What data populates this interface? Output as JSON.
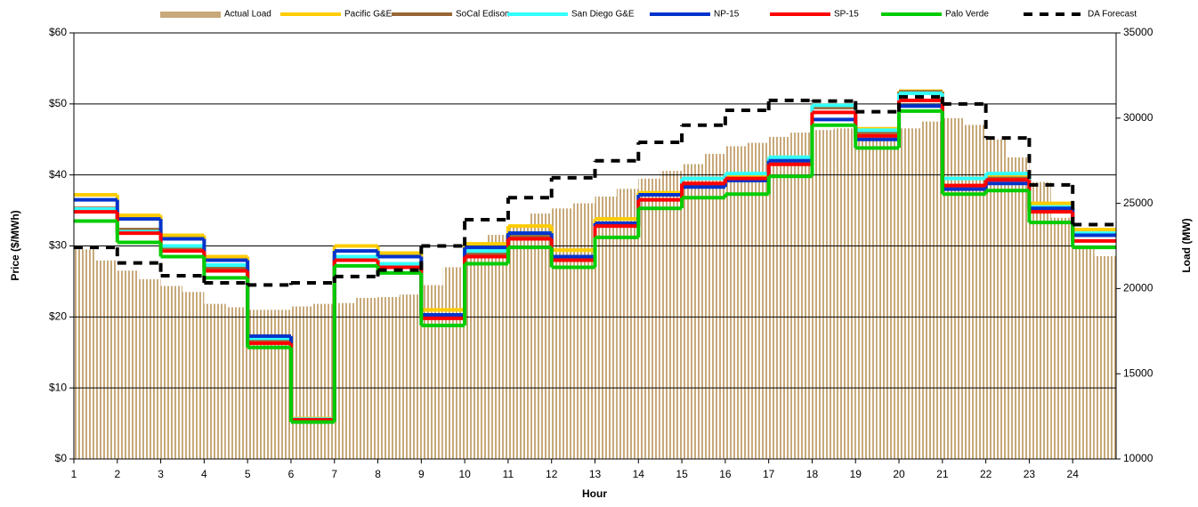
{
  "chart_data": {
    "type": "line",
    "x": [
      1,
      2,
      3,
      4,
      5,
      6,
      7,
      8,
      9,
      10,
      11,
      12,
      13,
      14,
      15,
      16,
      17,
      18,
      19,
      20,
      21,
      22,
      23,
      24
    ],
    "xlabel": "Hour",
    "ylabel": "Price ($/MWh)",
    "y2label": "Load (MW)",
    "xlim": [
      1,
      25
    ],
    "xticks": [
      1,
      2,
      3,
      4,
      5,
      6,
      7,
      8,
      9,
      10,
      11,
      12,
      13,
      14,
      15,
      16,
      17,
      18,
      19,
      20,
      21,
      22,
      23,
      24
    ],
    "ylim": [
      0,
      60
    ],
    "yticks": [
      {
        "value": 0,
        "label": "$0"
      },
      {
        "value": 10,
        "label": "$10"
      },
      {
        "value": 20,
        "label": "$20"
      },
      {
        "value": 30,
        "label": "$30"
      },
      {
        "value": 40,
        "label": "$40"
      },
      {
        "value": 50,
        "label": "$50"
      },
      {
        "value": 60,
        "label": "$60"
      }
    ],
    "y2lim": [
      10000,
      35000
    ],
    "y2ticks": [
      10000,
      15000,
      20000,
      25000,
      30000,
      35000
    ],
    "grid": true,
    "legend": "top",
    "series": [
      {
        "name": "Actual Load",
        "type": "bar",
        "axis": "y2",
        "color": "#c8a97a",
        "x": [
          1,
          1.5,
          2,
          2.5,
          3,
          3.5,
          4,
          4.5,
          5,
          5.5,
          6,
          6.5,
          7,
          7.5,
          8,
          8.5,
          9,
          9.5,
          10,
          10.5,
          11,
          11.5,
          12,
          12.5,
          13,
          13.5,
          14,
          14.5,
          15,
          15.5,
          16,
          16.5,
          17,
          17.5,
          18,
          18.5,
          19,
          19.5,
          20,
          20.5,
          21,
          21.5,
          22,
          22.5,
          23,
          23.5,
          24,
          24.5
        ],
        "values": [
          22300,
          21650,
          21050,
          20550,
          20150,
          19800,
          19100,
          18900,
          18750,
          18750,
          18950,
          19100,
          19150,
          19450,
          19500,
          19650,
          20200,
          21250,
          22300,
          23150,
          23750,
          24400,
          24700,
          25000,
          25400,
          25850,
          26450,
          26900,
          27300,
          27900,
          28350,
          28550,
          28900,
          29150,
          29300,
          29400,
          29150,
          28950,
          29400,
          29800,
          30000,
          29600,
          28750,
          27700,
          26250,
          24150,
          22500,
          21900
        ]
      },
      {
        "name": "Pacific G&E",
        "color": "#ffcc00",
        "values": [
          37.2,
          34.3,
          31.5,
          28.5,
          17.3,
          5.7,
          30,
          29,
          21,
          30.3,
          32.8,
          29.4,
          33.8,
          37.5,
          39.5,
          40,
          42.5,
          49.8,
          46.5,
          51.8,
          39.5,
          40,
          36,
          32.3
        ]
      },
      {
        "name": "SoCal Edison",
        "color": "#996633",
        "values": [
          35.3,
          32.3,
          29.8,
          27,
          16.8,
          5.6,
          28.5,
          27.5,
          20,
          29,
          31.5,
          28.5,
          32.8,
          36.5,
          38.5,
          39.5,
          42,
          49.5,
          46,
          51.7,
          38.5,
          39.5,
          35.2,
          31.5
        ]
      },
      {
        "name": "San Diego G&E",
        "color": "#33ffff",
        "values": [
          35.2,
          32,
          30,
          27.3,
          17,
          5.6,
          28.5,
          27.5,
          20.3,
          29.3,
          31.8,
          28.5,
          33.2,
          37.2,
          39.5,
          40.2,
          42.5,
          49.8,
          46.3,
          51.5,
          39.5,
          40.2,
          35.5,
          31.8
        ]
      },
      {
        "name": "NP-15",
        "color": "#0033cc",
        "values": [
          36.5,
          33.8,
          31,
          28,
          17.3,
          5.5,
          29.3,
          28.5,
          20.3,
          29.8,
          31.8,
          28.5,
          33.2,
          37.2,
          38.3,
          39.2,
          42,
          47.8,
          45,
          49.7,
          38,
          38.8,
          35.3,
          31.5
        ]
      },
      {
        "name": "SP-15",
        "color": "#ff0000",
        "values": [
          34.8,
          31.8,
          29.3,
          26.5,
          16.3,
          5.5,
          28,
          27,
          19.8,
          28.5,
          31,
          28,
          32.8,
          36.5,
          38.8,
          39.5,
          41.5,
          48.8,
          45.5,
          50.5,
          38.5,
          39.3,
          34.8,
          30.7
        ]
      },
      {
        "name": "Palo Verde",
        "color": "#00cc00",
        "values": [
          33.5,
          30.5,
          28.5,
          25.5,
          15.7,
          5.2,
          27.2,
          26.2,
          18.8,
          27.5,
          29.8,
          27,
          31.2,
          35.3,
          36.8,
          37.3,
          39.8,
          47,
          43.8,
          49,
          37.3,
          37.8,
          33.3,
          29.8
        ]
      },
      {
        "name": "DA Forecast",
        "color": "#000000",
        "dashed": true,
        "values": [
          29.8,
          27.6,
          25.8,
          24.8,
          24.5,
          24.8,
          25.7,
          26.6,
          30,
          33.7,
          36.8,
          39.6,
          42,
          44.6,
          47,
          49.1,
          50.5,
          50.4,
          48.9,
          51,
          50,
          45.2,
          38.6,
          33
        ]
      }
    ]
  }
}
